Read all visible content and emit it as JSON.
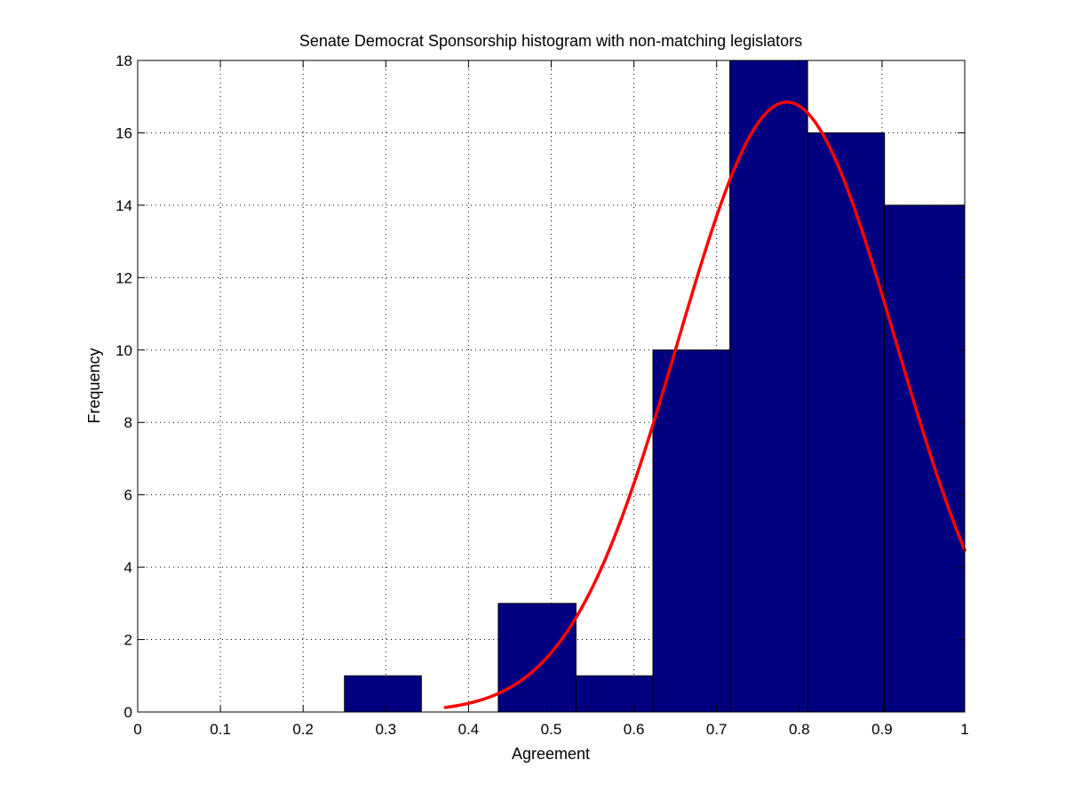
{
  "chart_data": {
    "type": "bar",
    "title": "Senate Democrat Sponsorship histogram with non-matching legislators",
    "xlabel": "Agreement",
    "ylabel": "Frequency",
    "xlim": [
      0,
      1
    ],
    "ylim": [
      0,
      18
    ],
    "xticks": [
      "0",
      "0.1",
      "0.2",
      "0.3",
      "0.4",
      "0.5",
      "0.6",
      "0.7",
      "0.8",
      "0.9",
      "1"
    ],
    "yticks": [
      "0",
      "2",
      "4",
      "6",
      "8",
      "10",
      "12",
      "14",
      "16",
      "18"
    ],
    "grid": true,
    "bins": [
      {
        "start": 0.25,
        "end": 0.343,
        "value": 1
      },
      {
        "start": 0.343,
        "end": 0.436,
        "value": 0
      },
      {
        "start": 0.436,
        "end": 0.53,
        "value": 3
      },
      {
        "start": 0.53,
        "end": 0.623,
        "value": 1
      },
      {
        "start": 0.623,
        "end": 0.716,
        "value": 10
      },
      {
        "start": 0.716,
        "end": 0.81,
        "value": 18
      },
      {
        "start": 0.81,
        "end": 0.903,
        "value": 16
      },
      {
        "start": 0.903,
        "end": 1.0,
        "value": 14
      }
    ],
    "fit_curve": {
      "type": "normal",
      "mean": 0.785,
      "std": 0.132,
      "peak": 16.85,
      "x_range": [
        0.372,
        1.0
      ]
    },
    "colors": {
      "bar_fill": "#000080",
      "bar_edge": "#000000",
      "curve": "#ff0000",
      "grid": "#000000"
    }
  }
}
